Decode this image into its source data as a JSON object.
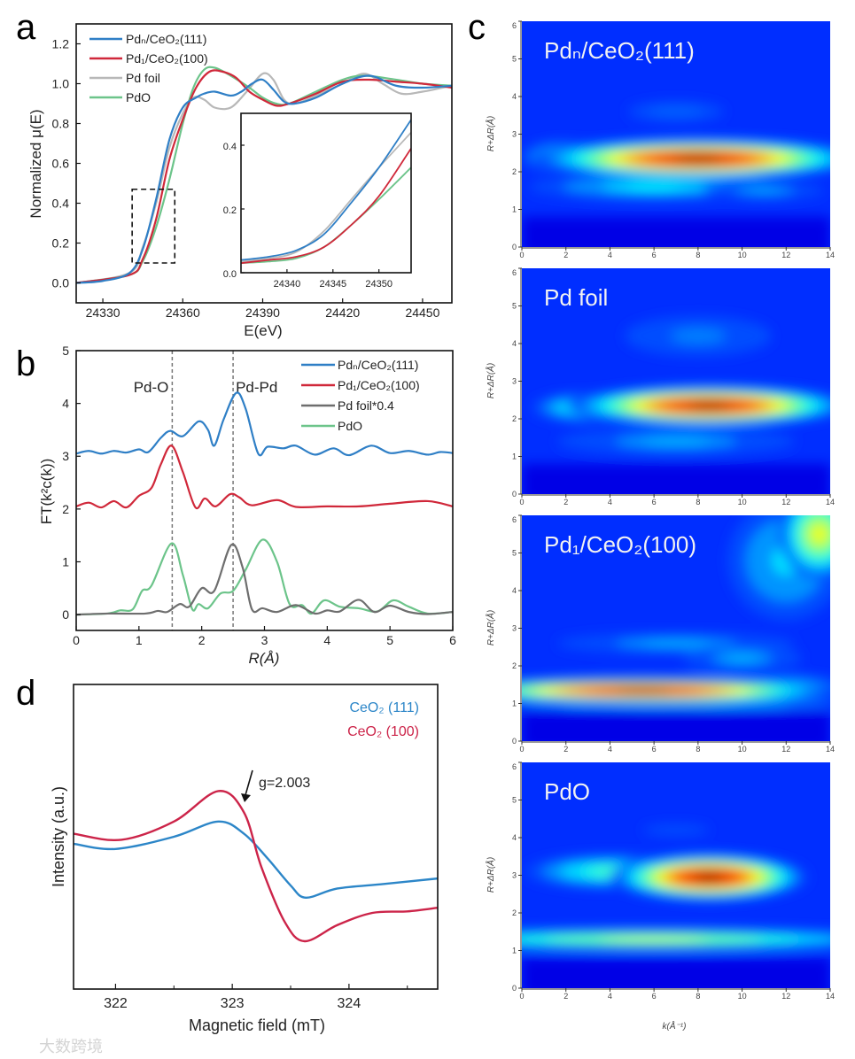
{
  "panel_letters": {
    "a": "a",
    "b": "b",
    "c": "c",
    "d": "d"
  },
  "watermark": "大数跨境",
  "colors": {
    "blue": "#2f7fc6",
    "red": "#d0283a",
    "grey": "#b8b8b8",
    "dark_grey": "#6e6e6e",
    "green": "#6cc48a",
    "red_d": "#cc2449",
    "blue_d": "#2c86c8"
  },
  "chart_data": [
    {
      "id": "a",
      "type": "line",
      "title": "",
      "xlabel": "E(eV)",
      "ylabel": "Normalized μ(E)",
      "xlim": [
        24320,
        24461
      ],
      "ylim": [
        -0.1,
        1.3
      ],
      "xticks": [
        24330,
        24360,
        24390,
        24420,
        24450
      ],
      "yticks": [
        0.0,
        0.2,
        0.4,
        0.6,
        0.8,
        1.0,
        1.2
      ],
      "ytick_labels": [
        "0.0",
        "0.2",
        "0.4",
        "0.6",
        "0.8",
        "1.0",
        "1.2"
      ],
      "legend_position": "top-left",
      "zoom_region": {
        "x": [
          24341,
          24357
        ],
        "y": [
          0.1,
          0.47
        ]
      },
      "series": [
        {
          "name": "Pdₙ/CeO₂(111)",
          "color": "#2f7fc6",
          "x": [
            24320,
            24330,
            24340,
            24345,
            24350,
            24355,
            24360,
            24365,
            24368,
            24372,
            24378,
            24382,
            24386,
            24390,
            24394,
            24398,
            24402,
            24410,
            24420,
            24430,
            24440,
            24450,
            24461
          ],
          "y": [
            0.0,
            0.01,
            0.05,
            0.17,
            0.42,
            0.72,
            0.88,
            0.93,
            0.95,
            0.96,
            0.94,
            0.96,
            1.0,
            1.02,
            0.97,
            0.91,
            0.9,
            0.93,
            1.0,
            1.04,
            0.99,
            0.98,
            0.99
          ]
        },
        {
          "name": "Pd₁/CeO₂(100)",
          "color": "#d0283a",
          "x": [
            24320,
            24340,
            24345,
            24350,
            24355,
            24360,
            24365,
            24370,
            24375,
            24380,
            24385,
            24390,
            24395,
            24400,
            24410,
            24420,
            24430,
            24440,
            24450,
            24461
          ],
          "y": [
            0.0,
            0.04,
            0.12,
            0.32,
            0.62,
            0.82,
            0.98,
            1.06,
            1.06,
            1.03,
            0.96,
            0.92,
            0.89,
            0.9,
            0.95,
            1.01,
            1.02,
            1.01,
            1.0,
            0.98
          ]
        },
        {
          "name": "Pd foil",
          "color": "#b8b8b8",
          "x": [
            24320,
            24340,
            24345,
            24350,
            24355,
            24360,
            24364,
            24368,
            24372,
            24378,
            24384,
            24390,
            24394,
            24398,
            24402,
            24410,
            24420,
            24428,
            24435,
            24442,
            24450,
            24461
          ],
          "y": [
            0.0,
            0.05,
            0.18,
            0.4,
            0.68,
            0.85,
            0.93,
            0.92,
            0.88,
            0.88,
            0.96,
            1.05,
            1.02,
            0.92,
            0.9,
            0.94,
            1.0,
            1.05,
            1.0,
            0.95,
            0.96,
            0.99
          ]
        },
        {
          "name": "PdO",
          "color": "#6cc48a",
          "x": [
            24320,
            24340,
            24345,
            24350,
            24355,
            24360,
            24364,
            24368,
            24372,
            24378,
            24385,
            24390,
            24395,
            24400,
            24410,
            24420,
            24428,
            24440,
            24450,
            24461
          ],
          "y": [
            0.0,
            0.04,
            0.11,
            0.28,
            0.52,
            0.8,
            0.98,
            1.07,
            1.08,
            1.04,
            0.98,
            0.93,
            0.9,
            0.9,
            0.96,
            1.02,
            1.04,
            1.02,
            1.0,
            0.99
          ]
        }
      ],
      "inset": {
        "xlim": [
          24335,
          24353.5
        ],
        "ylim": [
          0,
          0.5
        ],
        "xticks": [
          24340,
          24345,
          24350
        ],
        "yticks": [
          0.0,
          0.2,
          0.4
        ],
        "ytick_labels": [
          "0.0",
          "0.2",
          "0.4"
        ],
        "series": [
          {
            "name": "Pd foil",
            "color": "#b8b8b8",
            "x": [
              24335,
              24338,
              24341,
              24344,
              24347,
              24350,
              24353.5
            ],
            "y": [
              0.035,
              0.045,
              0.065,
              0.13,
              0.23,
              0.33,
              0.44
            ]
          },
          {
            "name": "PdO",
            "color": "#6cc48a",
            "x": [
              24335,
              24338,
              24341,
              24344,
              24347,
              24350,
              24353.5
            ],
            "y": [
              0.03,
              0.035,
              0.045,
              0.08,
              0.15,
              0.23,
              0.33
            ]
          },
          {
            "name": "Pd₁/CeO₂(100)",
            "color": "#d0283a",
            "x": [
              24335,
              24338,
              24341,
              24344,
              24347,
              24350,
              24353.5
            ],
            "y": [
              0.03,
              0.04,
              0.05,
              0.08,
              0.15,
              0.24,
              0.39
            ]
          },
          {
            "name": "Pdₙ/CeO₂(111)",
            "color": "#2f7fc6",
            "x": [
              24335,
              24338,
              24341,
              24344,
              24347,
              24350,
              24353.5
            ],
            "y": [
              0.04,
              0.05,
              0.07,
              0.12,
              0.22,
              0.33,
              0.48
            ]
          }
        ]
      }
    },
    {
      "id": "b",
      "type": "line",
      "xlabel": "R(Å)",
      "ylabel": "FT(k²c(k))",
      "xlim": [
        0,
        6
      ],
      "ylim": [
        -0.3,
        5
      ],
      "xticks": [
        0,
        1,
        2,
        3,
        4,
        5,
        6
      ],
      "yticks": [
        0,
        1,
        2,
        3,
        4,
        5
      ],
      "legend_position": "top-right",
      "annotations": [
        {
          "text": "Pd-O",
          "x": 1.53
        },
        {
          "text": "Pd-Pd",
          "x": 2.5
        }
      ],
      "series": [
        {
          "name": "Pdₙ/CeO₂(111)",
          "color": "#2f7fc6",
          "x": [
            0,
            0.2,
            0.4,
            0.6,
            0.8,
            1.0,
            1.15,
            1.35,
            1.5,
            1.7,
            1.95,
            2.1,
            2.2,
            2.35,
            2.55,
            2.7,
            2.9,
            3.05,
            3.3,
            3.5,
            3.8,
            4.1,
            4.35,
            4.7,
            5.0,
            5.3,
            5.6,
            5.8,
            6
          ],
          "y": [
            3.05,
            3.1,
            3.05,
            3.1,
            3.07,
            3.13,
            3.08,
            3.35,
            3.48,
            3.38,
            3.66,
            3.5,
            3.2,
            3.7,
            4.2,
            3.9,
            3.05,
            3.18,
            3.15,
            3.2,
            3.03,
            3.15,
            3.02,
            3.2,
            3.06,
            3.1,
            3.03,
            3.08,
            3.06
          ]
        },
        {
          "name": "Pd₁/CeO₂(100)",
          "color": "#d0283a",
          "x": [
            0,
            0.2,
            0.4,
            0.6,
            0.8,
            1.0,
            1.2,
            1.35,
            1.52,
            1.7,
            1.9,
            2.05,
            2.22,
            2.45,
            2.6,
            2.8,
            3.2,
            3.5,
            4.0,
            4.5,
            5.0,
            5.6,
            6
          ],
          "y": [
            2.05,
            2.12,
            2.03,
            2.15,
            2.03,
            2.25,
            2.4,
            2.85,
            3.2,
            2.7,
            2.03,
            2.2,
            2.05,
            2.28,
            2.22,
            2.07,
            2.17,
            2.04,
            2.05,
            2.05,
            2.1,
            2.15,
            2.05
          ]
        },
        {
          "name": "Pd foil*0.4",
          "color": "#6e6e6e",
          "x": [
            0,
            0.5,
            1.1,
            1.3,
            1.45,
            1.65,
            1.8,
            2.0,
            2.2,
            2.47,
            2.65,
            2.8,
            2.97,
            3.2,
            3.5,
            3.8,
            4.0,
            4.2,
            4.5,
            4.75,
            5.0,
            5.3,
            5.6,
            6
          ],
          "y": [
            0,
            0.02,
            0.02,
            0.07,
            0.05,
            0.2,
            0.15,
            0.5,
            0.45,
            1.32,
            0.9,
            0.1,
            0.12,
            0.05,
            0.18,
            0.02,
            0.08,
            0.06,
            0.28,
            0.05,
            0.17,
            0.05,
            0.01,
            0.05
          ]
        },
        {
          "name": "PdO",
          "color": "#6cc48a",
          "x": [
            0,
            0.5,
            0.7,
            0.9,
            1.05,
            1.2,
            1.52,
            1.7,
            1.85,
            1.95,
            2.1,
            2.3,
            2.5,
            2.7,
            2.97,
            3.2,
            3.4,
            3.6,
            3.75,
            3.95,
            4.2,
            4.5,
            4.8,
            5.05,
            5.3,
            5.6,
            6
          ],
          "y": [
            0,
            0.02,
            0.08,
            0.1,
            0.45,
            0.55,
            1.35,
            0.75,
            0.1,
            0.2,
            0.12,
            0.4,
            0.45,
            0.85,
            1.42,
            1.0,
            0.2,
            0.18,
            0.02,
            0.27,
            0.15,
            0.12,
            0.06,
            0.27,
            0.15,
            0.02,
            0.05
          ]
        }
      ]
    },
    {
      "id": "c",
      "type": "heatmap",
      "xlabel": "k(Å⁻¹)",
      "ylabel": "R+ΔR(Å)",
      "xlim": [
        0,
        14
      ],
      "ylim": [
        0,
        6
      ],
      "xticks": [
        0,
        2,
        4,
        6,
        8,
        10,
        12,
        14
      ],
      "yticks": [
        0,
        1,
        2,
        3,
        4,
        5,
        6
      ],
      "colormap": "jet",
      "maps": [
        {
          "title": "Pdₙ/CeO₂(111)",
          "features": [
            {
              "k": 7,
              "R": 3.6,
              "dk": 5,
              "dR": 0.6,
              "intensity": 0.22
            },
            {
              "k": 6,
              "R": 1.6,
              "dk": 5,
              "dR": 0.3,
              "intensity": 0.38
            },
            {
              "k": 11,
              "R": 1.5,
              "dk": 3,
              "dR": 0.25,
              "intensity": 0.3
            },
            {
              "k": 2,
              "R": 2.4,
              "dk": 1.5,
              "dR": 0.3,
              "intensity": 0.5
            },
            {
              "k": 8,
              "R": 2.35,
              "dk": 4.2,
              "dR": 0.3,
              "intensity": 1.0
            }
          ]
        },
        {
          "title": "Pd foil",
          "features": [
            {
              "k": 8,
              "R": 4.2,
              "dk": 5,
              "dR": 0.8,
              "intensity": 0.25
            },
            {
              "k": 7,
              "R": 1.4,
              "dk": 6,
              "dR": 0.4,
              "intensity": 0.3
            },
            {
              "k": 3,
              "R": 2.3,
              "dk": 2,
              "dR": 0.3,
              "intensity": 0.45
            },
            {
              "k": 8.5,
              "R": 2.35,
              "dk": 3.6,
              "dR": 0.3,
              "intensity": 1.0
            }
          ]
        },
        {
          "title": "Pd₁/CeO₂(100)",
          "features": [
            {
              "k": 12,
              "R": 4.8,
              "dk": 2.5,
              "dR": 1.5,
              "intensity": 0.35
            },
            {
              "k": 13.5,
              "R": 5.5,
              "dk": 1.2,
              "dR": 0.8,
              "intensity": 0.62
            },
            {
              "k": 7,
              "R": 2.6,
              "dk": 6,
              "dR": 0.3,
              "intensity": 0.3
            },
            {
              "k": 10,
              "R": 2.2,
              "dk": 3,
              "dR": 0.4,
              "intensity": 0.3
            },
            {
              "k": 7,
              "R": 1.0,
              "dk": 7,
              "dR": 0.08,
              "intensity": 0.45
            },
            {
              "k": 12,
              "R": 1.4,
              "dk": 2,
              "dR": 0.25,
              "intensity": 0.5
            },
            {
              "k": 5.5,
              "R": 1.35,
              "dk": 5,
              "dR": 0.2,
              "intensity": 1.0
            }
          ]
        },
        {
          "title": "PdO",
          "features": [
            {
              "k": 7,
              "R": 4.2,
              "dk": 6,
              "dR": 0.6,
              "intensity": 0.2
            },
            {
              "k": 6,
              "R": 1.3,
              "dk": 8,
              "dR": 0.2,
              "intensity": 0.58
            },
            {
              "k": 4,
              "R": 3.1,
              "dk": 3,
              "dR": 0.35,
              "intensity": 0.45
            },
            {
              "k": 8.5,
              "R": 2.95,
              "dk": 2.5,
              "dR": 0.35,
              "intensity": 1.0
            }
          ]
        }
      ]
    },
    {
      "id": "d",
      "type": "line",
      "xlabel": "Magnetic field (mT)",
      "ylabel": "Intensity (a.u.)",
      "xlim": [
        321.64,
        324.76
      ],
      "ylim": [
        0,
        1
      ],
      "xticks": [
        322,
        323,
        324
      ],
      "legend_position": "top-right",
      "annotations": [
        {
          "text": "g=2.003",
          "x": 323.05,
          "y": 0.62
        }
      ],
      "series": [
        {
          "name": "CeO₂ (111)",
          "color": "#2c86c8",
          "x": [
            321.64,
            322.0,
            322.5,
            322.88,
            323.1,
            323.3,
            323.5,
            323.63,
            323.9,
            324.3,
            324.76
          ],
          "y": [
            0.477,
            0.46,
            0.5,
            0.55,
            0.51,
            0.43,
            0.34,
            0.3,
            0.33,
            0.345,
            0.363
          ]
        },
        {
          "name": "CeO₂ (100)",
          "color": "#cc2449",
          "x": [
            321.64,
            322.05,
            322.5,
            322.88,
            323.1,
            323.25,
            323.45,
            323.62,
            323.9,
            324.2,
            324.5,
            324.76
          ],
          "y": [
            0.51,
            0.49,
            0.55,
            0.65,
            0.58,
            0.4,
            0.22,
            0.157,
            0.21,
            0.25,
            0.255,
            0.267
          ]
        }
      ]
    }
  ]
}
